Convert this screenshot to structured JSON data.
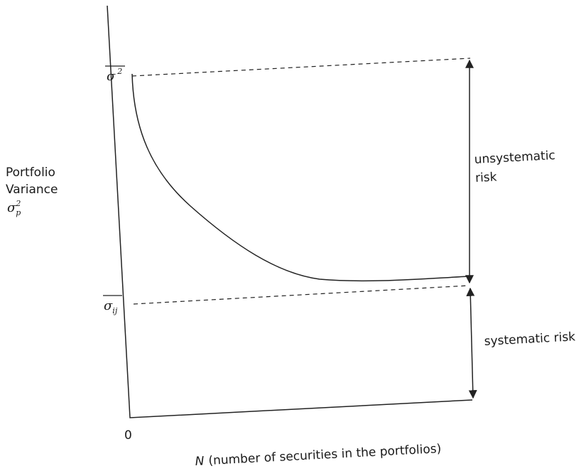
{
  "y_axis_label": {
    "lines": [
      "Portfolio",
      "Variance"
    ],
    "symbol": "σ",
    "subscript": "p",
    "superscript": "2"
  },
  "levels": [
    {
      "symbol": "σ",
      "superscript": "2"
    },
    {
      "symbol": "σ",
      "subscript": "ij"
    }
  ],
  "brackets": [
    {
      "label_lines": [
        "unsystematic",
        "risk"
      ]
    },
    {
      "label_lines": [
        "systematic risk"
      ]
    }
  ],
  "origin_label": 0,
  "x_axis_label": {
    "variable": "N",
    "text": "(number of securities in the portfolios)"
  }
}
